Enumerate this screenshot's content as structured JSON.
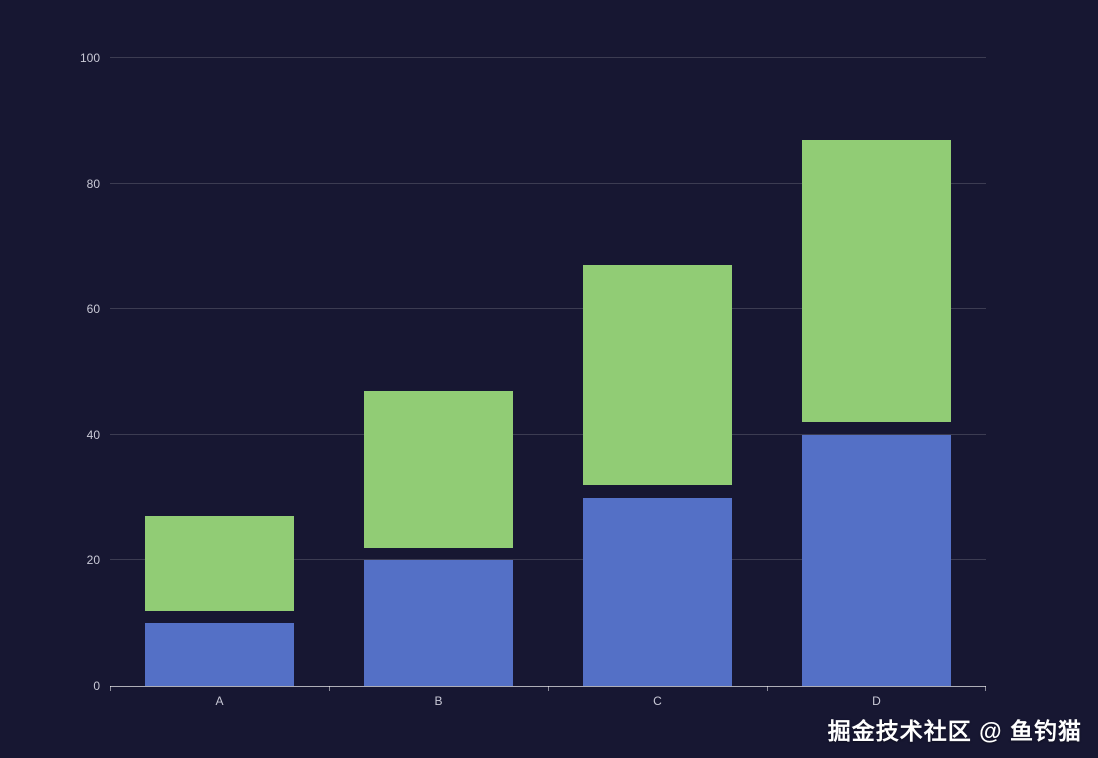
{
  "watermark": {
    "text": "掘金技术社区 @ 鱼钓猫"
  },
  "chart_data": {
    "type": "bar",
    "stacked": true,
    "title": "",
    "xlabel": "",
    "ylabel": "",
    "categories": [
      "A",
      "B",
      "C",
      "D"
    ],
    "series": [
      {
        "name": "blue",
        "color": "#5470c6",
        "values": [
          10,
          20,
          30,
          40
        ]
      },
      {
        "name": "green",
        "color": "#91cc75",
        "values": [
          15,
          25,
          35,
          45
        ]
      }
    ],
    "stack_gap": 2,
    "totals": [
      27,
      47,
      67,
      87
    ],
    "ylim": [
      0,
      100
    ],
    "yticks": [
      0,
      20,
      40,
      60,
      80,
      100
    ],
    "grid": true,
    "legend": false,
    "bar_width_ratio": 0.68,
    "colors": {
      "background": "#171732",
      "axis_line": "rgba(255,255,255,0.65)",
      "gridline": "rgba(255,255,255,0.16)",
      "tick_label": "#c9c9d6",
      "watermark_text": "#ffffff"
    }
  }
}
